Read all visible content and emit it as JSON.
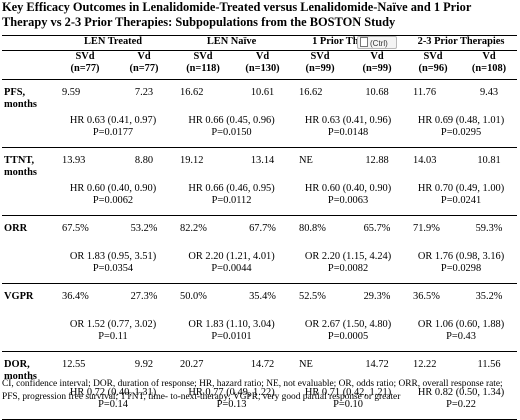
{
  "title": "Key Efficacy Outcomes in Lenalidomide-Treated versus Lenalidomide-Naïve and 1 Prior Therapy vs 2-3 Prior Therapies: Subpopulations from the BOSTON Study",
  "groups": [
    "LEN Treated",
    "LEN Naïve",
    "1 Prior Therapy",
    "2-3 Prior Therapies"
  ],
  "subheaders": [
    {
      "arm": "SVd",
      "n": "(n=77)"
    },
    {
      "arm": "Vd",
      "n": "(n=77)"
    },
    {
      "arm": "SVd",
      "n": "(n=118)"
    },
    {
      "arm": "Vd",
      "n": "(n=130)"
    },
    {
      "arm": "SVd",
      "n": "(n=99)"
    },
    {
      "arm": "Vd",
      "n": "(n=99)"
    },
    {
      "arm": "SVd",
      "n": "(n=96)"
    },
    {
      "arm": "Vd",
      "n": "(n=108)"
    }
  ],
  "outcomes": [
    {
      "label": "PFS, months",
      "values": [
        "9.59",
        "7.23",
        "16.62",
        "10.61",
        "16.62",
        "10.68",
        "11.76",
        "9.43"
      ],
      "stats": [
        "HR 0.63 (0.41, 0.97)\nP=0.0177",
        "HR 0.66 (0.45, 0.96)\nP=0.0150",
        "HR 0.63 (0.41, 0.96)\nP=0.0148",
        "HR 0.69 (0.48, 1.01)\nP=0.0295"
      ]
    },
    {
      "label": "TTNT, months",
      "values": [
        "13.93",
        "8.80",
        "19.12",
        "13.14",
        "NE",
        "12.88",
        "14.03",
        "10.81"
      ],
      "stats": [
        "HR 0.60 (0.40, 0.90)\nP=0.0062",
        "HR 0.66 (0.46, 0.95)\nP=0.0112",
        "HR 0.60 (0.40, 0.90)\nP=0.0063",
        "HR 0.70 (0.49, 1.00)\nP=0.0241"
      ]
    },
    {
      "label": "ORR",
      "values": [
        "67.5%",
        "53.2%",
        "82.2%",
        "67.7%",
        "80.8%",
        "65.7%",
        "71.9%",
        "59.3%"
      ],
      "stats": [
        "OR 1.83 (0.95, 3.51)\nP=0.0354",
        "OR 2.20 (1.21, 4.01)\nP=0.0044",
        "OR 2.20 (1.15, 4.24)\nP=0.0082",
        "OR 1.76 (0.98, 3.16)\nP=0.0298"
      ]
    },
    {
      "label": "VGPR",
      "values": [
        "36.4%",
        "27.3%",
        "50.0%",
        "35.4%",
        "52.5%",
        "29.3%",
        "36.5%",
        "35.2%"
      ],
      "stats": [
        "OR 1.52 (0.77, 3.02)\nP=0.11",
        "OR 1.83 (1.10, 3.04)\nP=0.0101",
        "OR 2.67 (1.50, 4.80)\nP=0.0005",
        "OR 1.06 (0.60, 1.88)\nP=0.43"
      ]
    },
    {
      "label": "DOR, months",
      "values": [
        "12.55",
        "9.92",
        "20.27",
        "14.72",
        "NE",
        "14.72",
        "12.22",
        "11.56"
      ],
      "stats": [
        "HR 0.72 (0.40, 1.31)\nP=0.14",
        "HR 0.77 (0.49, 1.22)\nP=0.13",
        "HR 0.71 (0.42, 1.21)\nP=0.10",
        "HR 0.82 (0.50, 1.34)\nP=0.22"
      ]
    }
  ],
  "footnote": "CI, confidence interval; DOR, duration of response; HR, hazard ratio; NE, not evaluable; OR, odds ratio; ORR, overall response rate; PFS, progression free survival; TTNT, time- to-next-therapy; VGPR, very good partial response or greater",
  "paste_popup": {
    "label": "(Ctrl)",
    "icon": "clipboard-icon"
  }
}
